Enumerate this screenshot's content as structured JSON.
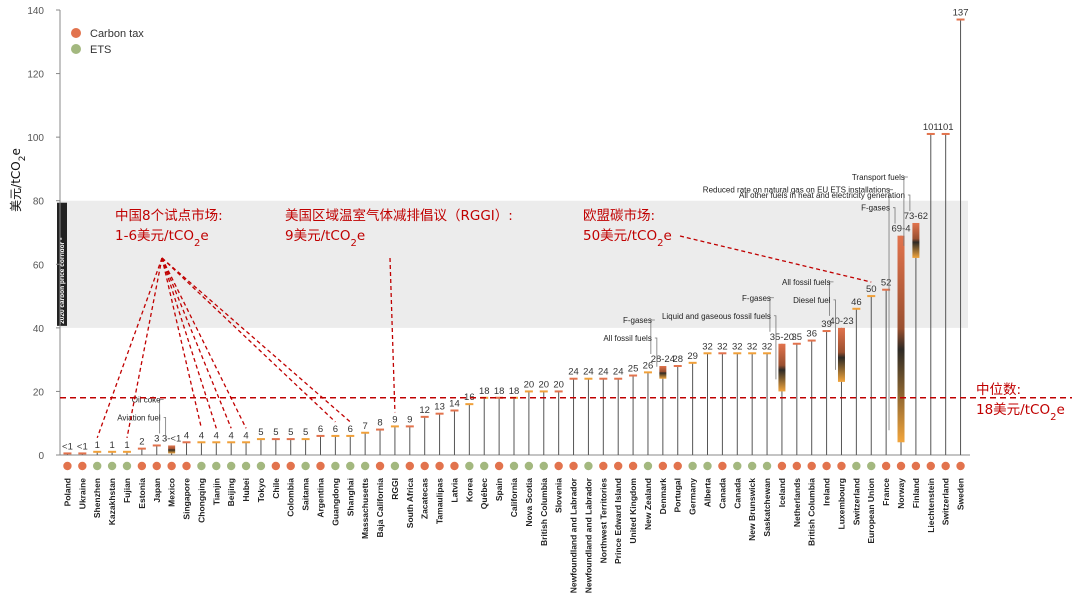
{
  "chart_data": {
    "type": "bar",
    "ylabel": "美元/tCO2e",
    "ylim": [
      0,
      140
    ],
    "yticks": [
      0,
      20,
      40,
      60,
      80,
      100,
      120,
      140
    ],
    "grid": false,
    "corridor": {
      "range": [
        40,
        80
      ],
      "label": "2020 carbon price corridor *"
    },
    "legend": {
      "placement": "top-left",
      "entries": [
        {
          "name": "Carbon tax",
          "color": "#e2734d"
        },
        {
          "name": "ETS",
          "color": "#a3b87f"
        }
      ]
    },
    "categories": [
      {
        "name": "Poland",
        "type": "tax",
        "label": "<1",
        "value": 0.5
      },
      {
        "name": "Ukraine",
        "type": "tax",
        "label": "<1",
        "value": 0.5
      },
      {
        "name": "Shenzhen",
        "type": "ets",
        "label": "1",
        "value": 1
      },
      {
        "name": "Kazakhstan",
        "type": "ets",
        "label": "1",
        "value": 1
      },
      {
        "name": "Fujian",
        "type": "ets",
        "label": "1",
        "value": 1
      },
      {
        "name": "Estonia",
        "type": "tax",
        "label": "2",
        "value": 2
      },
      {
        "name": "Japan",
        "type": "tax",
        "label": "3",
        "value": 3
      },
      {
        "name": "Mexico",
        "type": "tax",
        "label": "3-<1",
        "range": [
          0.5,
          3
        ]
      },
      {
        "name": "Singapore",
        "type": "tax",
        "label": "4",
        "value": 4
      },
      {
        "name": "Chongqing",
        "type": "ets",
        "label": "4",
        "value": 4
      },
      {
        "name": "Tianjin",
        "type": "ets",
        "label": "4",
        "value": 4
      },
      {
        "name": "Beijing",
        "type": "ets",
        "label": "4",
        "value": 4
      },
      {
        "name": "Hubei",
        "type": "ets",
        "label": "4",
        "value": 4
      },
      {
        "name": "Tokyo",
        "type": "ets",
        "label": "5",
        "value": 5
      },
      {
        "name": "Chile",
        "type": "tax",
        "label": "5",
        "value": 5
      },
      {
        "name": "Colombia",
        "type": "tax",
        "label": "5",
        "value": 5
      },
      {
        "name": "Saitama",
        "type": "ets",
        "label": "5",
        "value": 5
      },
      {
        "name": "Argentina",
        "type": "tax",
        "label": "6",
        "value": 6
      },
      {
        "name": "Guangdong",
        "type": "ets",
        "label": "6",
        "value": 6
      },
      {
        "name": "Shanghai",
        "type": "ets",
        "label": "6",
        "value": 6
      },
      {
        "name": "Massachusetts",
        "type": "ets",
        "label": "7",
        "value": 7
      },
      {
        "name": "Baja California",
        "type": "tax",
        "label": "8",
        "value": 8
      },
      {
        "name": "RGGI",
        "type": "ets",
        "label": "9",
        "value": 9
      },
      {
        "name": "South Africa",
        "type": "tax",
        "label": "9",
        "value": 9
      },
      {
        "name": "Zacatecas",
        "type": "tax",
        "label": "12",
        "value": 12
      },
      {
        "name": "Tamaulipas",
        "type": "tax",
        "label": "13",
        "value": 13
      },
      {
        "name": "Latvia",
        "type": "tax",
        "label": "14",
        "value": 14
      },
      {
        "name": "Korea",
        "type": "ets",
        "label": "16",
        "value": 16
      },
      {
        "name": "Québec",
        "type": "ets",
        "label": "18",
        "value": 18
      },
      {
        "name": "Spain",
        "type": "tax",
        "label": "18",
        "value": 18
      },
      {
        "name": "California",
        "type": "ets",
        "label": "18",
        "value": 18
      },
      {
        "name": "Nova Scotia",
        "type": "ets",
        "label": "20",
        "value": 20
      },
      {
        "name": "British Columbia",
        "type": "ets",
        "label": "20",
        "value": 20
      },
      {
        "name": "Slovenia",
        "type": "tax",
        "label": "20",
        "value": 20
      },
      {
        "name": "Newfoundland and Labrador",
        "type": "tax",
        "label": "24",
        "value": 24
      },
      {
        "name": "Newfoundland and Labrador",
        "type": "ets",
        "label": "24",
        "value": 24
      },
      {
        "name": "Northwest Territories",
        "type": "tax",
        "label": "24",
        "value": 24
      },
      {
        "name": "Prince Edward Island",
        "type": "tax",
        "label": "24",
        "value": 24
      },
      {
        "name": "United Kingdom",
        "type": "tax",
        "label": "25",
        "value": 25
      },
      {
        "name": "New Zealand",
        "type": "ets",
        "label": "26",
        "value": 26
      },
      {
        "name": "Denmark",
        "type": "tax",
        "label": "28-24",
        "range": [
          24,
          28
        ]
      },
      {
        "name": "Portugal",
        "type": "tax",
        "label": "28",
        "value": 28
      },
      {
        "name": "Germany",
        "type": "ets",
        "label": "29",
        "value": 29
      },
      {
        "name": "Alberta",
        "type": "ets",
        "label": "32",
        "value": 32
      },
      {
        "name": "Canada",
        "type": "tax",
        "label": "32",
        "value": 32
      },
      {
        "name": "Canada",
        "type": "ets",
        "label": "32",
        "value": 32
      },
      {
        "name": "New Brunswick",
        "type": "ets",
        "label": "32",
        "value": 32
      },
      {
        "name": "Saskatchewan",
        "type": "ets",
        "label": "32",
        "value": 32
      },
      {
        "name": "Iceland",
        "type": "tax",
        "label": "35-20",
        "range": [
          20,
          35
        ]
      },
      {
        "name": "Netherlands",
        "type": "tax",
        "label": "35",
        "value": 35
      },
      {
        "name": "British Columbia",
        "type": "tax",
        "label": "36",
        "value": 36
      },
      {
        "name": "Ireland",
        "type": "tax",
        "label": "39",
        "value": 39
      },
      {
        "name": "Luxembourg",
        "type": "tax",
        "label": "40-23",
        "range": [
          23,
          40
        ]
      },
      {
        "name": "Switzerland",
        "type": "ets",
        "label": "46",
        "value": 46
      },
      {
        "name": "European Union",
        "type": "ets",
        "label": "50",
        "value": 50
      },
      {
        "name": "France",
        "type": "tax",
        "label": "52",
        "value": 52
      },
      {
        "name": "Norway",
        "type": "tax",
        "label": "69-4",
        "range": [
          4,
          69
        ]
      },
      {
        "name": "Finland",
        "type": "tax",
        "label": "73-62",
        "range": [
          62,
          73
        ]
      },
      {
        "name": "Liechtenstein",
        "type": "tax",
        "label": "101",
        "value": 101
      },
      {
        "name": "Switzerland",
        "type": "tax",
        "label": "101",
        "value": 101
      },
      {
        "name": "Sweden",
        "type": "tax",
        "label": "137",
        "value": 137
      }
    ],
    "annotations": [
      {
        "cat": 7,
        "text": "Oil coke",
        "value": 3
      },
      {
        "cat": 7,
        "text": "Aviation fuel",
        "value": 0.5
      },
      {
        "cat": 40,
        "text": "F-gases",
        "value": 28
      },
      {
        "cat": 40,
        "text": "All fossil fuels",
        "value": 24
      },
      {
        "cat": 48,
        "text": "F-gases",
        "value": 35
      },
      {
        "cat": 48,
        "text": "Liquid and gaseous fossil fuels",
        "value": 20
      },
      {
        "cat": 52,
        "text": "All fossil fuels",
        "value": 40
      },
      {
        "cat": 52,
        "text": "Diesel fuel",
        "value": 23
      },
      {
        "cat": 56,
        "text": "Reduced rate on natural gas on EU ETS installations",
        "value": 4
      },
      {
        "cat": 56,
        "text": "F-gases",
        "value": 69
      },
      {
        "cat": 57,
        "text": "Transport fuels",
        "value": 62
      },
      {
        "cat": 57,
        "text": "All other fuels in heat and electricity generation",
        "value": 73
      }
    ],
    "median": {
      "value": 18,
      "label": "中位数:",
      "sublabel": "18美元/tCO2e"
    },
    "notes": [
      {
        "title": "中国8个试点市场:",
        "sub": "1-6美元/tCO2e",
        "targets": [
          2,
          4,
          9,
          10,
          11,
          12,
          18,
          19
        ]
      },
      {
        "title": "美国区域温室气体减排倡议（RGGI）:",
        "sub": "9美元/tCO2e",
        "targets": [
          22
        ]
      },
      {
        "title": "欧盟碳市场:",
        "sub": "50美元/tCO2e",
        "targets": [
          54
        ]
      }
    ]
  }
}
